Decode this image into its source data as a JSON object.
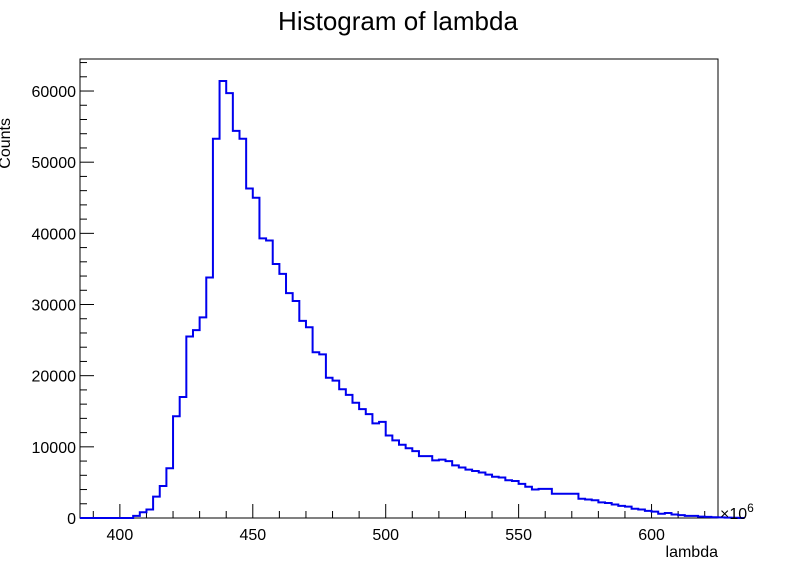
{
  "chart_data": {
    "type": "histogram",
    "title": "Histogram of lambda",
    "xlabel": "lambda",
    "ylabel": "Counts",
    "x_multiplier_label": "×10",
    "x_multiplier_exponent": "6",
    "xlim": [
      385,
      625
    ],
    "ylim": [
      0,
      64500
    ],
    "grid": false,
    "x_ticks": [
      400,
      450,
      500,
      550,
      600
    ],
    "y_ticks": [
      0,
      10000,
      20000,
      30000,
      40000,
      50000,
      60000
    ],
    "bin_start": 385,
    "bin_width": 2.5,
    "series": [
      {
        "color": "#0000ee",
        "values": [
          0,
          0,
          0,
          0,
          0,
          0,
          0,
          0,
          300,
          800,
          1200,
          3000,
          4500,
          7000,
          14300,
          17000,
          25500,
          26400,
          28200,
          33800,
          53300,
          61400,
          59700,
          54400,
          53300,
          46300,
          45000,
          39300,
          39000,
          35700,
          34300,
          31600,
          30500,
          27700,
          26800,
          23300,
          23000,
          19700,
          19300,
          18100,
          17300,
          16200,
          15300,
          14600,
          13300,
          13500,
          11600,
          10900,
          10300,
          9800,
          9400,
          8700,
          8700,
          8100,
          8200,
          8000,
          7400,
          7100,
          6800,
          6600,
          6400,
          6100,
          5800,
          5700,
          5300,
          5200,
          4800,
          4400,
          4000,
          4100,
          4100,
          3400,
          3400,
          3400,
          3400,
          2700,
          2600,
          2500,
          2200,
          2100,
          1900,
          1700,
          1600,
          1300,
          1200,
          1000,
          900,
          600,
          700,
          500,
          400,
          300,
          300,
          200,
          150,
          100,
          80,
          60,
          40,
          0
        ]
      }
    ]
  }
}
